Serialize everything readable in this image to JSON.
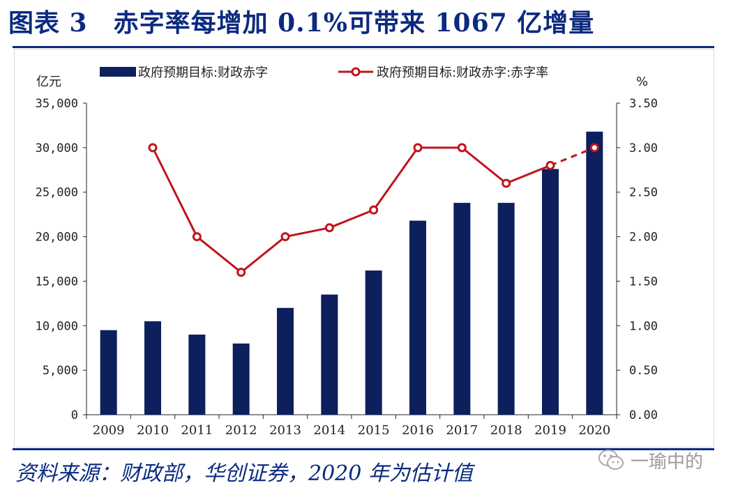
{
  "title": "图表 3　赤字率每增加 0.1%可带来 1067 亿增量",
  "source": "资料来源：财政部，华创证券，2020 年为估计值",
  "watermark": "一瑜中的",
  "colors": {
    "title": "#0b2a80",
    "bar": "#0d1f5c",
    "line": "#c0141c",
    "marker_fill": "#ffffff",
    "axis": "#222222"
  },
  "chart_data": {
    "type": "bar",
    "categories": [
      "2009",
      "2010",
      "2011",
      "2012",
      "2013",
      "2014",
      "2015",
      "2016",
      "2017",
      "2018",
      "2019",
      "2020"
    ],
    "left_unit": "亿元",
    "right_unit": "%",
    "left_ylim": [
      0,
      35000
    ],
    "right_ylim": [
      0,
      3.5
    ],
    "left_ticks": [
      "0",
      "5,000",
      "10,000",
      "15,000",
      "20,000",
      "25,000",
      "30,000",
      "35,000"
    ],
    "left_tick_values": [
      0,
      5000,
      10000,
      15000,
      20000,
      25000,
      30000,
      35000
    ],
    "right_ticks": [
      "0.00",
      "0.50",
      "1.00",
      "1.50",
      "2.00",
      "2.50",
      "3.00",
      "3.50"
    ],
    "right_tick_values": [
      0,
      0.5,
      1.0,
      1.5,
      2.0,
      2.5,
      3.0,
      3.5
    ],
    "grid": false,
    "legend_position": "top",
    "series": [
      {
        "name": "政府预期目标:财政赤字",
        "type": "bar",
        "axis": "left",
        "values": [
          9500,
          10500,
          9000,
          8000,
          12000,
          13500,
          16200,
          21800,
          23800,
          23800,
          27600,
          31800
        ]
      },
      {
        "name": "政府预期目标:财政赤字:赤字率",
        "type": "line",
        "axis": "right",
        "values": [
          null,
          3.0,
          2.0,
          1.6,
          2.0,
          2.1,
          2.3,
          3.0,
          3.0,
          2.6,
          2.8,
          3.0
        ],
        "dashed_last_segment": true
      }
    ]
  }
}
